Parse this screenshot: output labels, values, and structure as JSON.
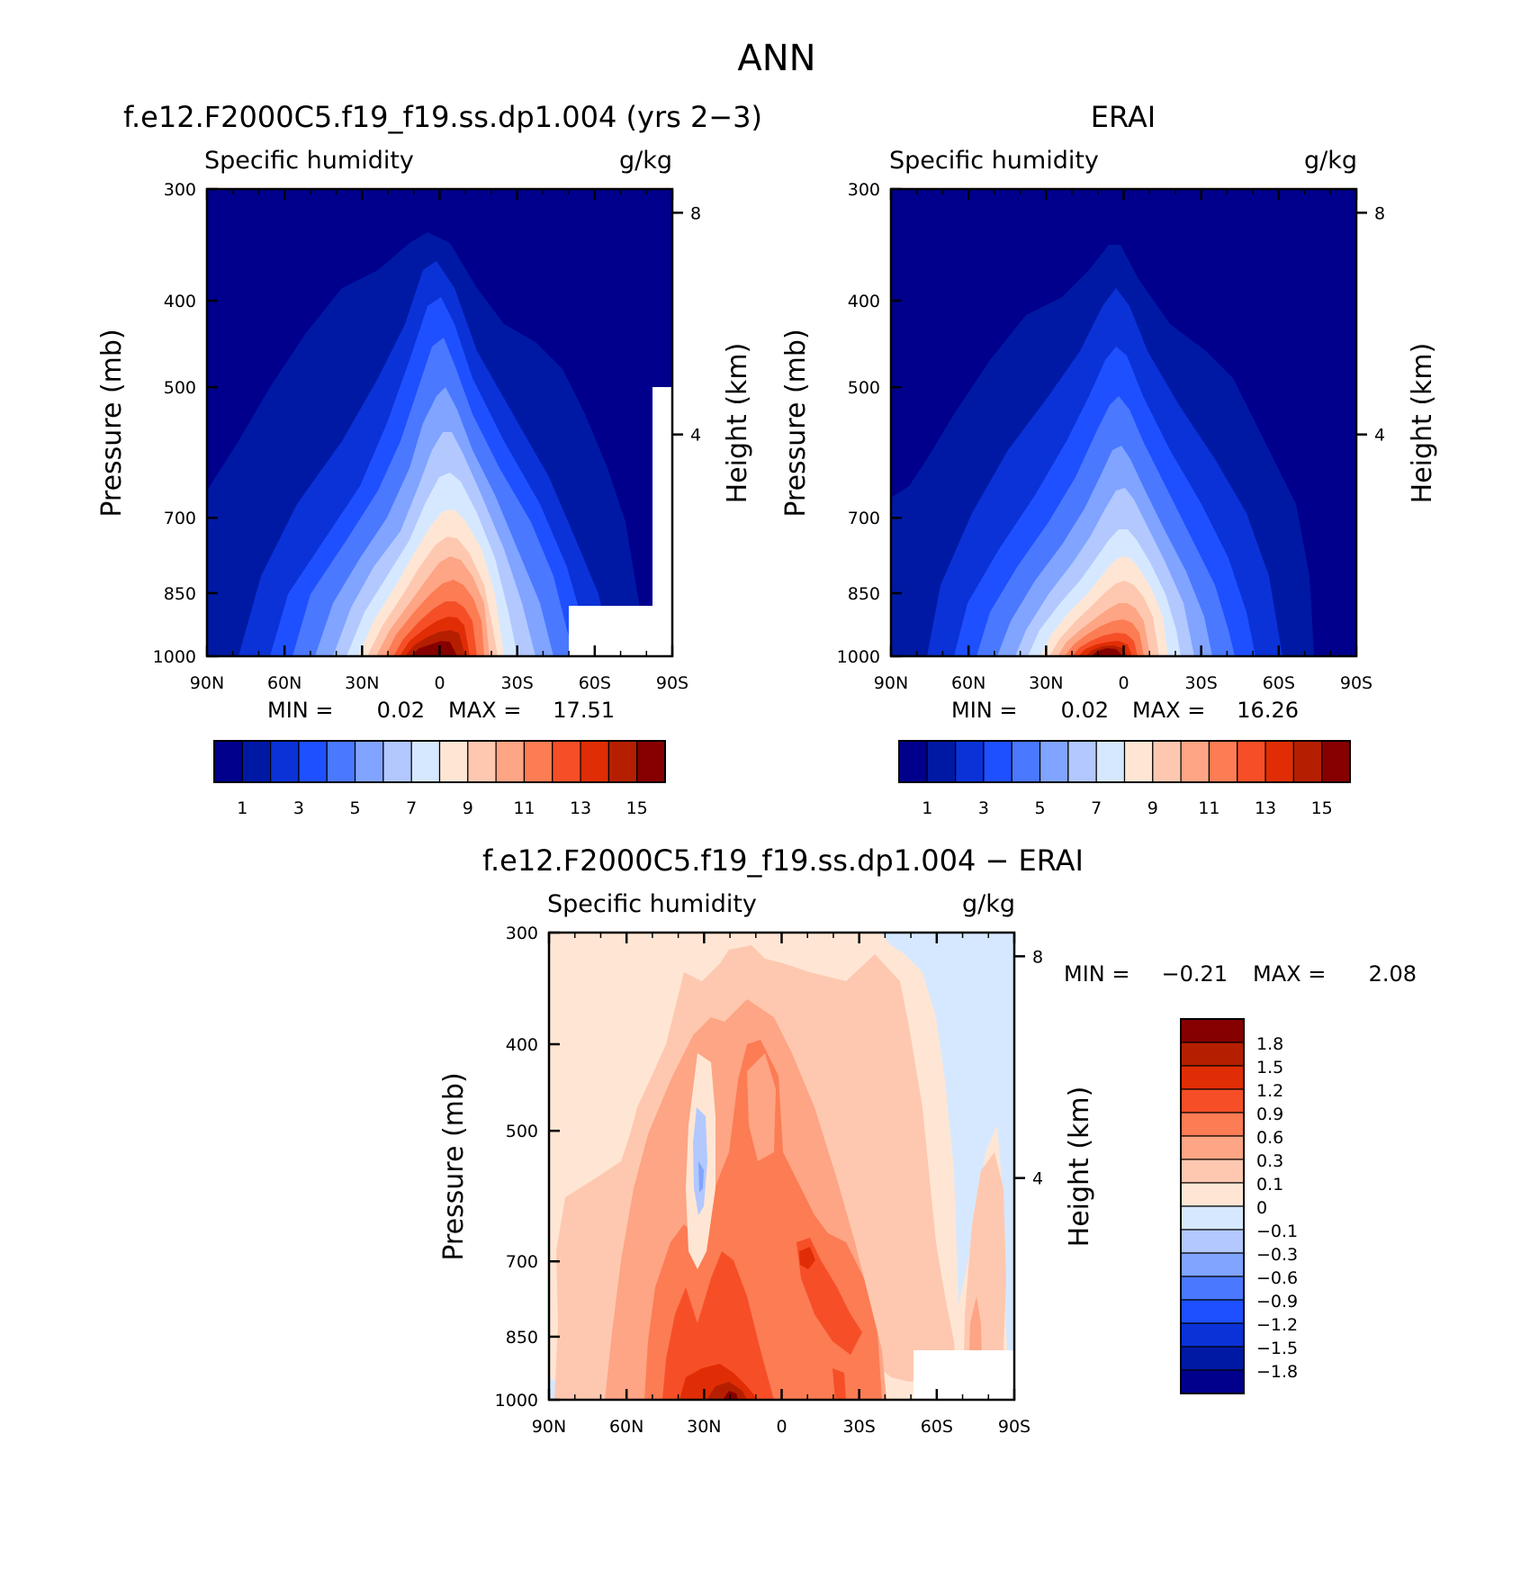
{
  "figure_title": "ANN",
  "colors": {
    "abs_levels": [
      "#00008c",
      "#0019a5",
      "#0a32d7",
      "#1e50ff",
      "#4a78ff",
      "#80a4ff",
      "#b2c8ff",
      "#d6e8ff",
      "#ffe6d4",
      "#fec8b0",
      "#fda584",
      "#fc7c54",
      "#f64f27",
      "#e02d05",
      "#b51f00",
      "#860000"
    ],
    "diff_levels": [
      "#00008c",
      "#0019a5",
      "#0a32d7",
      "#1e50ff",
      "#4a78ff",
      "#80a4ff",
      "#b2c8ff",
      "#d6e8ff",
      "#ffe6d4",
      "#fec8b0",
      "#fda584",
      "#fc7c54",
      "#f64f27",
      "#e02d05",
      "#b51f00",
      "#860000"
    ]
  },
  "panels": [
    {
      "title": "f.e12.F2000C5.f19_f19.ss.dp1.004 (yrs 2-3)",
      "left_label": "Specific humidity",
      "right_label": "g/kg",
      "ylabel": "Pressure (mb)",
      "ylabel_right": "Height (km)",
      "min_label": "MIN =",
      "min_value": "0.02",
      "max_label": "MAX =",
      "max_value": "17.51",
      "colorbar_labels": [
        "1",
        "3",
        "5",
        "7",
        "9",
        "11",
        "13",
        "15"
      ]
    },
    {
      "title": "ERAI",
      "left_label": "Specific humidity",
      "right_label": "g/kg",
      "ylabel": "Pressure (mb)",
      "ylabel_right": "Height (km)",
      "min_label": "MIN =",
      "min_value": "0.02",
      "max_label": "MAX =",
      "max_value": "16.26",
      "colorbar_labels": [
        "1",
        "3",
        "5",
        "7",
        "9",
        "11",
        "13",
        "15"
      ]
    },
    {
      "title": "f.e12.F2000C5.f19_f19.ss.dp1.004 - ERAI",
      "left_label": "Specific humidity",
      "right_label": "g/kg",
      "ylabel": "Pressure (mb)",
      "ylabel_right": "Height (km)",
      "min_label": "MIN =",
      "min_value": "-0.21",
      "max_label": "MAX =",
      "max_value": "2.08",
      "colorbar_labels": [
        "1.8",
        "1.5",
        "1.2",
        "0.9",
        "0.6",
        "0.3",
        "0.1",
        "0",
        "-0.1",
        "-0.3",
        "-0.6",
        "-0.9",
        "-1.2",
        "-1.5",
        "-1.8"
      ]
    }
  ],
  "chart_data": [
    {
      "type": "heatmap",
      "title": "f.e12.F2000C5.f19_f19.ss.dp1.004 (yrs 2-3)",
      "variable": "Specific humidity",
      "units": "g/kg",
      "xlabel": "",
      "ylabel": "Pressure (mb)",
      "ylabel_right": "Height (km)",
      "x_ticks": [
        "90N",
        "60N",
        "30N",
        "0",
        "30S",
        "60S",
        "90S"
      ],
      "y_ticks": [
        300,
        400,
        500,
        700,
        850,
        1000
      ],
      "y_right_ticks": [
        4,
        8
      ],
      "y_scale": "log",
      "ylim": [
        1000,
        300
      ],
      "contour_levels": [
        1,
        2,
        3,
        4,
        5,
        6,
        7,
        8,
        9,
        10,
        11,
        12,
        13,
        14,
        15
      ],
      "peak": {
        "lat": 0,
        "pressure": 1000,
        "value": 17.51
      },
      "min": 0.02,
      "max": 17.51
    },
    {
      "type": "heatmap",
      "title": "ERAI",
      "variable": "Specific humidity",
      "units": "g/kg",
      "xlabel": "",
      "ylabel": "Pressure (mb)",
      "ylabel_right": "Height (km)",
      "x_ticks": [
        "90N",
        "60N",
        "30N",
        "0",
        "30S",
        "60S",
        "90S"
      ],
      "y_ticks": [
        300,
        400,
        500,
        700,
        850,
        1000
      ],
      "y_right_ticks": [
        4,
        8
      ],
      "y_scale": "log",
      "ylim": [
        1000,
        300
      ],
      "contour_levels": [
        1,
        2,
        3,
        4,
        5,
        6,
        7,
        8,
        9,
        10,
        11,
        12,
        13,
        14,
        15
      ],
      "peak": {
        "lat": 0,
        "pressure": 1000,
        "value": 16.26
      },
      "min": 0.02,
      "max": 16.26
    },
    {
      "type": "heatmap",
      "title": "f.e12.F2000C5.f19_f19.ss.dp1.004 - ERAI",
      "variable": "Specific humidity",
      "units": "g/kg",
      "xlabel": "",
      "ylabel": "Pressure (mb)",
      "ylabel_right": "Height (km)",
      "x_ticks": [
        "90N",
        "60N",
        "30N",
        "0",
        "30S",
        "60S",
        "90S"
      ],
      "y_ticks": [
        300,
        400,
        500,
        700,
        850,
        1000
      ],
      "y_right_ticks": [
        4,
        8
      ],
      "y_scale": "log",
      "ylim": [
        1000,
        300
      ],
      "contour_levels": [
        -1.8,
        -1.5,
        -1.2,
        -0.9,
        -0.6,
        -0.3,
        -0.1,
        0,
        0.1,
        0.3,
        0.6,
        0.9,
        1.2,
        1.5,
        1.8
      ],
      "min": -0.21,
      "max": 2.08
    }
  ]
}
